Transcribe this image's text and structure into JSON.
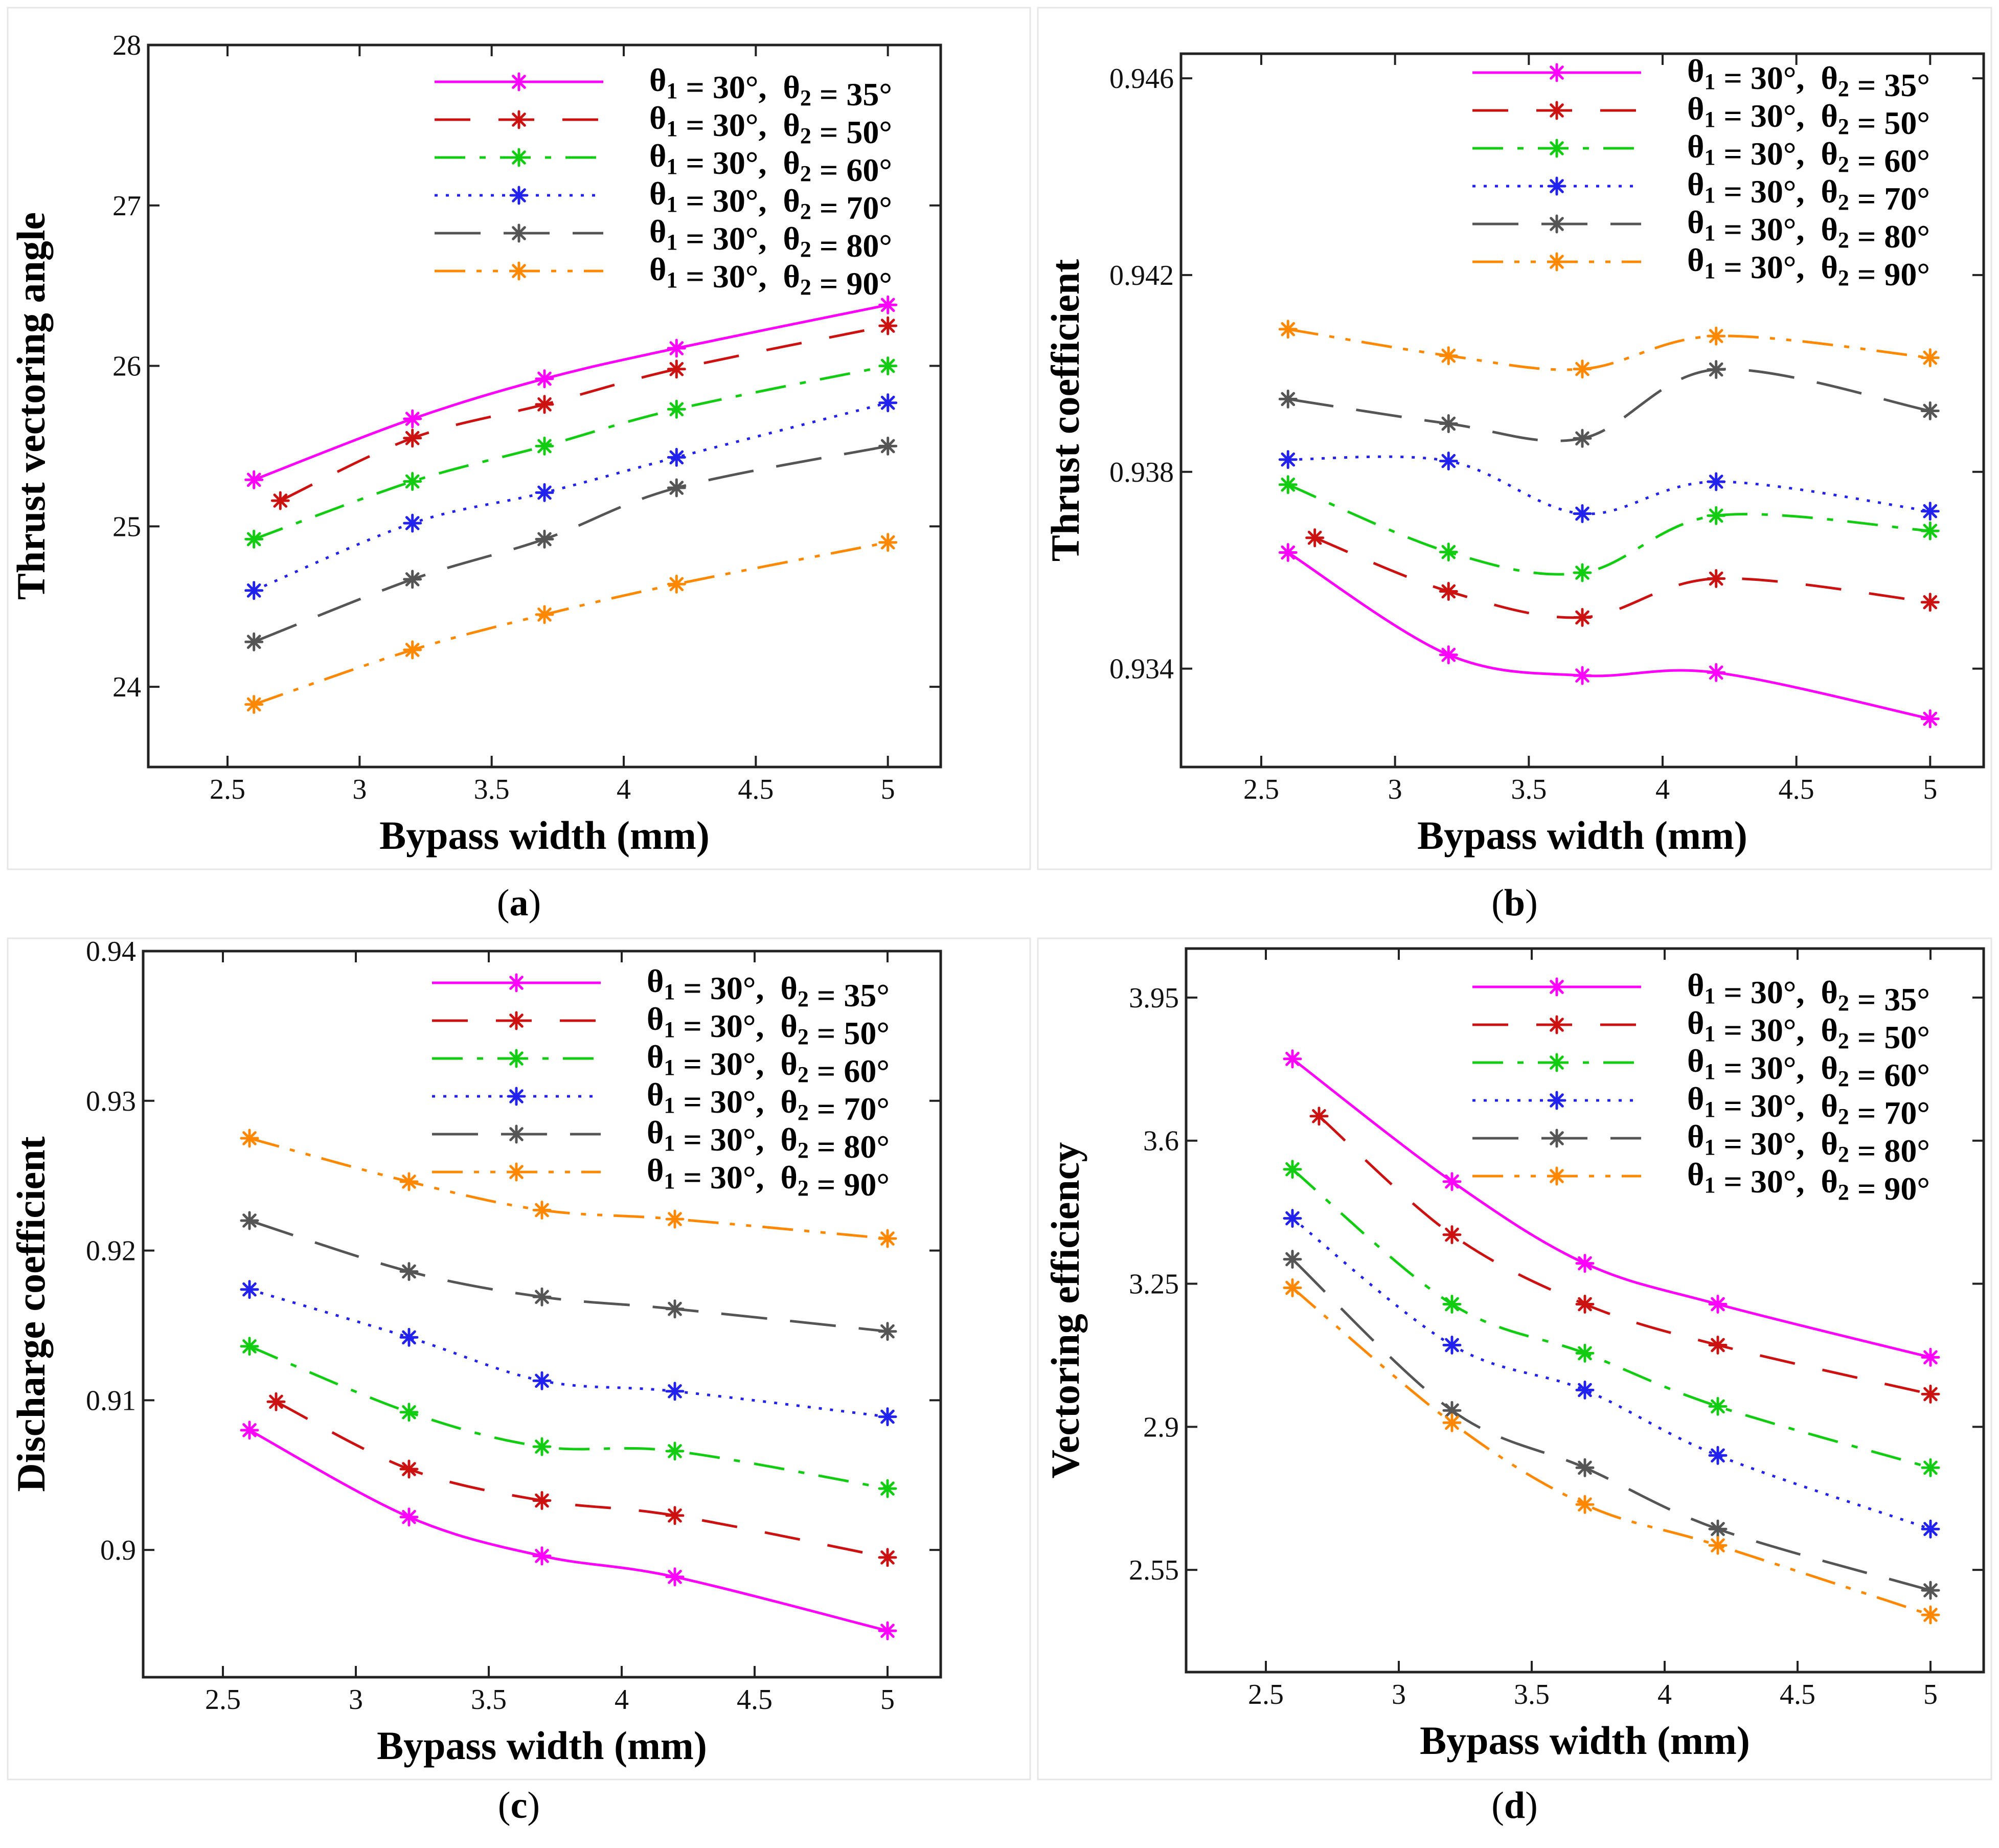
{
  "chart_data": [
    {
      "type": "line",
      "panel_label": "a",
      "xlabel": "Bypass width (mm)",
      "ylabel": "Thrust vectoring angle",
      "xlim": [
        2.2,
        5.2
      ],
      "ylim": [
        23.5,
        28.0
      ],
      "xticks": [
        2.5,
        3,
        3.5,
        4,
        4.5,
        5
      ],
      "xtick_labels": [
        "2.5",
        "3",
        "3.5",
        "4",
        "4.5",
        "5"
      ],
      "yticks": [
        24,
        25,
        26,
        27,
        28
      ],
      "ytick_labels": [
        "24",
        "25",
        "26",
        "27",
        "28"
      ],
      "legend_position": "top-right",
      "series": [
        {
          "name": "θ1 = 30°,  θ2 = 35°",
          "x": [
            2.6,
            3.2,
            3.7,
            4.2,
            5.0
          ],
          "values": [
            25.29,
            25.67,
            25.92,
            26.11,
            26.38
          ]
        },
        {
          "name": "θ1 = 30°,  θ2 = 50°",
          "x": [
            2.7,
            3.2,
            3.7,
            4.2,
            5.0
          ],
          "values": [
            25.16,
            25.55,
            25.76,
            25.98,
            26.25
          ]
        },
        {
          "name": "θ1 = 30°,  θ2 = 60°",
          "x": [
            2.6,
            3.2,
            3.7,
            4.2,
            5.0
          ],
          "values": [
            24.92,
            25.28,
            25.5,
            25.73,
            26.0
          ]
        },
        {
          "name": "θ1 = 30°,  θ2 = 70°",
          "x": [
            2.6,
            3.2,
            3.7,
            4.2,
            5.0
          ],
          "values": [
            24.6,
            25.02,
            25.21,
            25.43,
            25.77
          ]
        },
        {
          "name": "θ1 = 30°,  θ2 = 80°",
          "x": [
            2.6,
            3.2,
            3.7,
            4.2,
            5.0
          ],
          "values": [
            24.28,
            24.67,
            24.92,
            25.24,
            25.5
          ]
        },
        {
          "name": "θ1 = 30°,  θ2 = 90°",
          "x": [
            2.6,
            3.2,
            3.7,
            4.2,
            5.0
          ],
          "values": [
            23.89,
            24.23,
            24.45,
            24.64,
            24.9
          ]
        }
      ]
    },
    {
      "type": "line",
      "panel_label": "b",
      "xlabel": "Bypass width (mm)",
      "ylabel": "Thrust coefficient",
      "xlim": [
        2.2,
        5.2
      ],
      "ylim": [
        0.932,
        0.9465
      ],
      "xticks": [
        2.5,
        3,
        3.5,
        4,
        4.5,
        5
      ],
      "xtick_labels": [
        "2.5",
        "3",
        "3.5",
        "4",
        "4.5",
        "5"
      ],
      "yticks": [
        0.934,
        0.938,
        0.942,
        0.946
      ],
      "ytick_labels": [
        "0.934",
        "0.938",
        "0.942",
        "0.946"
      ],
      "legend_position": "top-right",
      "series": [
        {
          "name": "θ1 = 30°,  θ2 = 35°",
          "x": [
            2.6,
            3.2,
            3.7,
            4.2,
            5.0
          ],
          "values": [
            0.93636,
            0.93428,
            0.93386,
            0.93392,
            0.93298
          ]
        },
        {
          "name": "θ1 = 30°,  θ2 = 50°",
          "x": [
            2.7,
            3.2,
            3.7,
            4.2,
            5.0
          ],
          "values": [
            0.93666,
            0.93557,
            0.93504,
            0.93583,
            0.93535
          ]
        },
        {
          "name": "θ1 = 30°,  θ2 = 60°",
          "x": [
            2.6,
            3.2,
            3.7,
            4.2,
            5.0
          ],
          "values": [
            0.93774,
            0.93637,
            0.93595,
            0.93711,
            0.9368
          ]
        },
        {
          "name": "θ1 = 30°,  θ2 = 70°",
          "x": [
            2.6,
            3.2,
            3.7,
            4.2,
            5.0
          ],
          "values": [
            0.93825,
            0.93822,
            0.93715,
            0.9378,
            0.9372
          ]
        },
        {
          "name": "θ1 = 30°,  θ2 = 80°",
          "x": [
            2.6,
            3.2,
            3.7,
            4.2,
            5.0
          ],
          "values": [
            0.93948,
            0.93898,
            0.93868,
            0.94008,
            0.93924
          ]
        },
        {
          "name": "θ1 = 30°,  θ2 = 90°",
          "x": [
            2.6,
            3.2,
            3.7,
            4.2,
            5.0
          ],
          "values": [
            0.9409,
            0.94036,
            0.94009,
            0.94076,
            0.94032
          ]
        }
      ]
    },
    {
      "type": "line",
      "panel_label": "c",
      "xlabel": "Bypass width (mm)",
      "ylabel": "Discharge coefficient",
      "xlim": [
        2.2,
        5.2
      ],
      "ylim": [
        0.8915,
        0.94
      ],
      "xticks": [
        2.5,
        3,
        3.5,
        4,
        4.5,
        5
      ],
      "xtick_labels": [
        "2.5",
        "3",
        "3.5",
        "4",
        "4.5",
        "5"
      ],
      "yticks": [
        0.9,
        0.91,
        0.92,
        0.93,
        0.94
      ],
      "ytick_labels": [
        "0.9",
        "0.91",
        "0.92",
        "0.93",
        "0.94"
      ],
      "legend_position": "top-right",
      "series": [
        {
          "name": "θ1 = 30°,  θ2 = 35°",
          "x": [
            2.6,
            3.2,
            3.7,
            4.2,
            5.0
          ],
          "values": [
            0.908,
            0.9022,
            0.8996,
            0.8982,
            0.8946
          ]
        },
        {
          "name": "θ1 = 30°,  θ2 = 50°",
          "x": [
            2.7,
            3.2,
            3.7,
            4.2,
            5.0
          ],
          "values": [
            0.9099,
            0.9054,
            0.9033,
            0.9023,
            0.8995
          ]
        },
        {
          "name": "θ1 = 30°,  θ2 = 60°",
          "x": [
            2.6,
            3.2,
            3.7,
            4.2,
            5.0
          ],
          "values": [
            0.9136,
            0.9092,
            0.9069,
            0.9066,
            0.9041
          ]
        },
        {
          "name": "θ1 = 30°,  θ2 = 70°",
          "x": [
            2.6,
            3.2,
            3.7,
            4.2,
            5.0
          ],
          "values": [
            0.9174,
            0.9142,
            0.9113,
            0.9106,
            0.9089
          ]
        },
        {
          "name": "θ1 = 30°,  θ2 = 80°",
          "x": [
            2.6,
            3.2,
            3.7,
            4.2,
            5.0
          ],
          "values": [
            0.922,
            0.9186,
            0.9169,
            0.9161,
            0.9146
          ]
        },
        {
          "name": "θ1 = 30°,  θ2 = 90°",
          "x": [
            2.6,
            3.2,
            3.7,
            4.2,
            5.0
          ],
          "values": [
            0.9275,
            0.9246,
            0.9227,
            0.9221,
            0.9208
          ]
        }
      ]
    },
    {
      "type": "line",
      "panel_label": "d",
      "xlabel": "Bypass width (mm)",
      "ylabel": "Vectoring efficiency",
      "xlim": [
        2.2,
        5.2
      ],
      "ylim": [
        2.3,
        4.07
      ],
      "xticks": [
        2.5,
        3,
        3.5,
        4,
        4.5,
        5
      ],
      "xtick_labels": [
        "2.5",
        "3",
        "3.5",
        "4",
        "4.5",
        "5"
      ],
      "yticks": [
        2.55,
        2.9,
        3.25,
        3.6,
        3.95
      ],
      "ytick_labels": [
        "2.55",
        "2.9",
        "3.25",
        "3.6",
        "3.95"
      ],
      "legend_position": "top-right",
      "series": [
        {
          "name": "θ1 = 30°,  θ2 = 35°",
          "x": [
            2.6,
            3.2,
            3.7,
            4.2,
            5.0
          ],
          "values": [
            3.8,
            3.5,
            3.3,
            3.2,
            3.07
          ]
        },
        {
          "name": "θ1 = 30°,  θ2 = 50°",
          "x": [
            2.7,
            3.2,
            3.7,
            4.2,
            5.0
          ],
          "values": [
            3.66,
            3.37,
            3.2,
            3.1,
            2.98
          ]
        },
        {
          "name": "θ1 = 30°,  θ2 = 60°",
          "x": [
            2.6,
            3.2,
            3.7,
            4.2,
            5.0
          ],
          "values": [
            3.53,
            3.2,
            3.08,
            2.95,
            2.8
          ]
        },
        {
          "name": "θ1 = 30°,  θ2 = 70°",
          "x": [
            2.6,
            3.2,
            3.7,
            4.2,
            5.0
          ],
          "values": [
            3.41,
            3.1,
            2.99,
            2.83,
            2.65
          ]
        },
        {
          "name": "θ1 = 30°,  θ2 = 80°",
          "x": [
            2.6,
            3.2,
            3.7,
            4.2,
            5.0
          ],
          "values": [
            3.31,
            2.94,
            2.8,
            2.65,
            2.5
          ]
        },
        {
          "name": "θ1 = 30°,  θ2 = 90°",
          "x": [
            2.6,
            3.2,
            3.7,
            4.2,
            5.0
          ],
          "values": [
            3.24,
            2.91,
            2.71,
            2.61,
            2.44
          ]
        }
      ]
    }
  ],
  "series_colors": [
    "#ff00ff",
    "#cc1111",
    "#11cc11",
    "#2222ee",
    "#555555",
    "#ff8800"
  ]
}
